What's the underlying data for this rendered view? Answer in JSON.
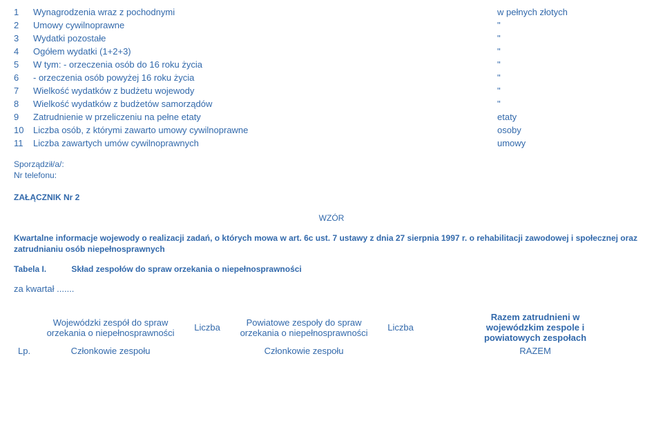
{
  "text_color": "#3269ab",
  "background_color": "#ffffff",
  "list": {
    "items": [
      {
        "num": "1",
        "label": "Wynagrodzenia wraz z pochodnymi",
        "unit": "w pełnych złotych"
      },
      {
        "num": "2",
        "label": "Umowy cywilnoprawne",
        "unit": "\""
      },
      {
        "num": "3",
        "label": "Wydatki pozostałe",
        "unit": "\""
      },
      {
        "num": "4",
        "label": "Ogółem wydatki (1+2+3)",
        "unit": "\""
      },
      {
        "num": "5",
        "label": "W tym: - orzeczenia osób do 16 roku życia",
        "unit": "\""
      },
      {
        "num": "6",
        "label": "- orzeczenia osób powyżej 16 roku życia",
        "unit": "\"",
        "indent": true
      },
      {
        "num": "7",
        "label": "Wielkość wydatków z budżetu wojewody",
        "unit": "\""
      },
      {
        "num": "8",
        "label": "Wielkość wydatków z budżetów samorządów",
        "unit": "\""
      },
      {
        "num": "9",
        "label": "Zatrudnienie w przeliczeniu na pełne etaty",
        "unit": "etaty"
      },
      {
        "num": "10",
        "label": "Liczba osób, z którymi zawarto umowy cywilnoprawne",
        "unit": "osoby"
      },
      {
        "num": "11",
        "label": "Liczba zawartych umów cywilnoprawnych",
        "unit": "umowy"
      }
    ]
  },
  "meta1": "Sporządził/a/:",
  "meta2": "Nr telefonu:",
  "attachment": "ZAŁĄCZNIK Nr 2",
  "wzor": "WZÓR",
  "paragraph": "Kwartalne informacje wojewody o realizacji zadań, o których mowa w art. 6c ust. 7 ustawy z dnia 27 sierpnia 1997 r. o rehabilitacji zawodowej i społecznej oraz zatrudnianiu osób niepełnosprawnych",
  "tabela_lbl": "Tabela I.",
  "tabela_txt": "Skład zespołów do spraw orzekania o niepełnosprawności",
  "kwartal": "za kwartał .......",
  "bottom": {
    "h1": "Wojewódzki zespół do spraw orzekania o niepełnosprawności",
    "l1": "Liczba",
    "h2": "Powiatowe zespoły do spraw orzekania o niepełnosprawności",
    "l2": "Liczba",
    "h3a": "Razem zatrudnieni w",
    "h3b": "wojewódzkim zespole i",
    "h3c": "powiatowych zespołach",
    "lp": "Lp.",
    "c1": "Członkowie zespołu",
    "c2": "Członkowie zespołu",
    "c3": "RAZEM"
  }
}
